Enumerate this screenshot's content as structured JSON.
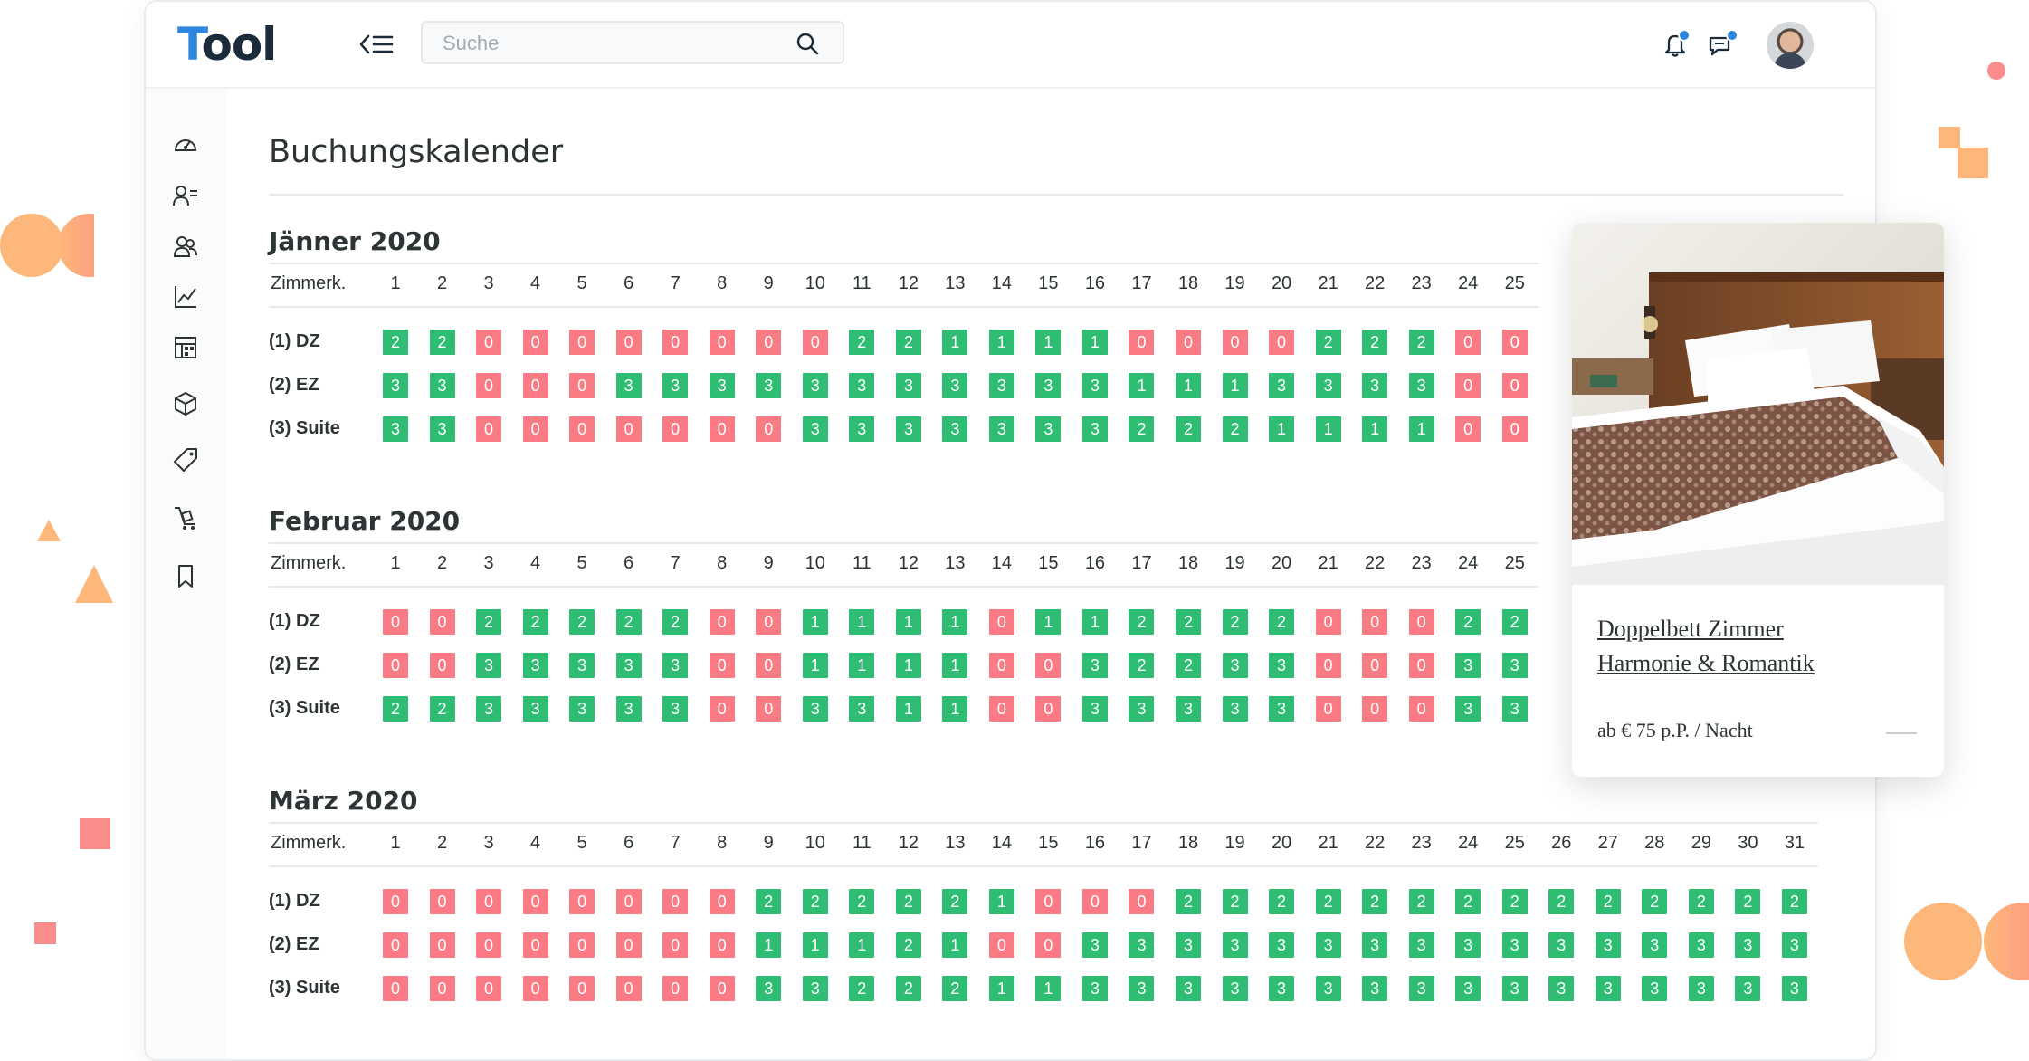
{
  "colors": {
    "available": "#2ebd72",
    "booked": "#fa7b84",
    "brand_accent": "#2e86de",
    "deco_orange": "#fdb77a",
    "deco_pink": "#fa8c8c"
  },
  "header": {
    "logo_first": "T",
    "logo_rest": "ool",
    "menu_icon": "menu-collapse-icon",
    "search_placeholder": "Suche",
    "search_value": "",
    "search_icon": "search-icon",
    "notifications_icon": "bell-icon",
    "messages_icon": "chat-icon"
  },
  "sidebar": {
    "items": [
      {
        "icon": "dashboard-icon"
      },
      {
        "icon": "guest-list-icon"
      },
      {
        "icon": "users-icon"
      },
      {
        "icon": "chart-icon"
      },
      {
        "icon": "calendar-grid-icon"
      },
      {
        "icon": "package-icon"
      },
      {
        "icon": "tag-icon"
      },
      {
        "icon": "luggage-cart-icon"
      },
      {
        "icon": "bookmark-icon"
      }
    ]
  },
  "page": {
    "title": "Buchungskalender"
  },
  "calendar": {
    "column_label": "Zimmerk.",
    "months": [
      {
        "name": "Jänner 2020",
        "days": [
          "1",
          "2",
          "3",
          "4",
          "5",
          "6",
          "7",
          "8",
          "9",
          "10",
          "11",
          "12",
          "13",
          "14",
          "15",
          "16",
          "17",
          "18",
          "19",
          "20",
          "21",
          "22",
          "23",
          "24",
          "25"
        ],
        "rooms": [
          {
            "label": "(1) DZ",
            "values": [
              2,
              2,
              0,
              0,
              0,
              0,
              0,
              0,
              0,
              0,
              2,
              2,
              1,
              1,
              1,
              1,
              0,
              0,
              0,
              0,
              2,
              2,
              2,
              0,
              0
            ]
          },
          {
            "label": "(2) EZ",
            "values": [
              3,
              3,
              0,
              0,
              0,
              3,
              3,
              3,
              3,
              3,
              3,
              3,
              3,
              3,
              3,
              3,
              1,
              1,
              1,
              3,
              3,
              3,
              3,
              0,
              0
            ]
          },
          {
            "label": "(3) Suite",
            "values": [
              3,
              3,
              0,
              0,
              0,
              0,
              0,
              0,
              0,
              3,
              3,
              3,
              3,
              3,
              3,
              3,
              2,
              2,
              2,
              1,
              1,
              1,
              1,
              0,
              0
            ]
          }
        ]
      },
      {
        "name": "Februar 2020",
        "days": [
          "1",
          "2",
          "3",
          "4",
          "5",
          "6",
          "7",
          "8",
          "9",
          "10",
          "11",
          "12",
          "13",
          "14",
          "15",
          "16",
          "17",
          "18",
          "19",
          "20",
          "21",
          "22",
          "23",
          "24",
          "25"
        ],
        "rooms": [
          {
            "label": "(1) DZ",
            "values": [
              0,
              0,
              2,
              2,
              2,
              2,
              2,
              0,
              0,
              1,
              1,
              1,
              1,
              0,
              1,
              1,
              2,
              2,
              2,
              2,
              0,
              0,
              0,
              2,
              2
            ]
          },
          {
            "label": "(2) EZ",
            "values": [
              0,
              0,
              3,
              3,
              3,
              3,
              3,
              0,
              0,
              1,
              1,
              1,
              1,
              0,
              0,
              3,
              2,
              2,
              3,
              3,
              0,
              0,
              0,
              3,
              3
            ]
          },
          {
            "label": "(3) Suite",
            "values": [
              2,
              2,
              3,
              3,
              3,
              3,
              3,
              0,
              0,
              3,
              3,
              1,
              1,
              0,
              0,
              3,
              3,
              3,
              3,
              3,
              0,
              0,
              0,
              3,
              3
            ]
          }
        ]
      },
      {
        "name": "März 2020",
        "days": [
          "1",
          "2",
          "3",
          "4",
          "5",
          "6",
          "7",
          "8",
          "9",
          "10",
          "11",
          "12",
          "13",
          "14",
          "15",
          "16",
          "17",
          "18",
          "19",
          "20",
          "21",
          "22",
          "23",
          "24",
          "25",
          "26",
          "27",
          "28",
          "29",
          "30",
          "31"
        ],
        "rooms": [
          {
            "label": "(1) DZ",
            "values": [
              0,
              0,
              0,
              0,
              0,
              0,
              0,
              0,
              2,
              2,
              2,
              2,
              2,
              1,
              0,
              0,
              0,
              2,
              2,
              2,
              2,
              2,
              2,
              2,
              2,
              2,
              2,
              2,
              2,
              2,
              2
            ]
          },
          {
            "label": "(2) EZ",
            "values": [
              0,
              0,
              0,
              0,
              0,
              0,
              0,
              0,
              1,
              1,
              1,
              2,
              1,
              0,
              0,
              3,
              3,
              3,
              3,
              3,
              3,
              3,
              3,
              3,
              3,
              3,
              3,
              3,
              3,
              3,
              3
            ]
          },
          {
            "label": "(3) Suite",
            "values": [
              0,
              0,
              0,
              0,
              0,
              0,
              0,
              0,
              3,
              3,
              2,
              2,
              2,
              1,
              1,
              3,
              3,
              3,
              3,
              3,
              3,
              3,
              3,
              3,
              3,
              3,
              3,
              3,
              3,
              3,
              3
            ]
          }
        ]
      }
    ]
  },
  "offer_card": {
    "image": "hotel-room-photo",
    "title_line1": "Doppelbett Zimmer",
    "title_line2": "Harmonie & Romantik",
    "price": "ab € 75 p.P. / Nacht"
  }
}
